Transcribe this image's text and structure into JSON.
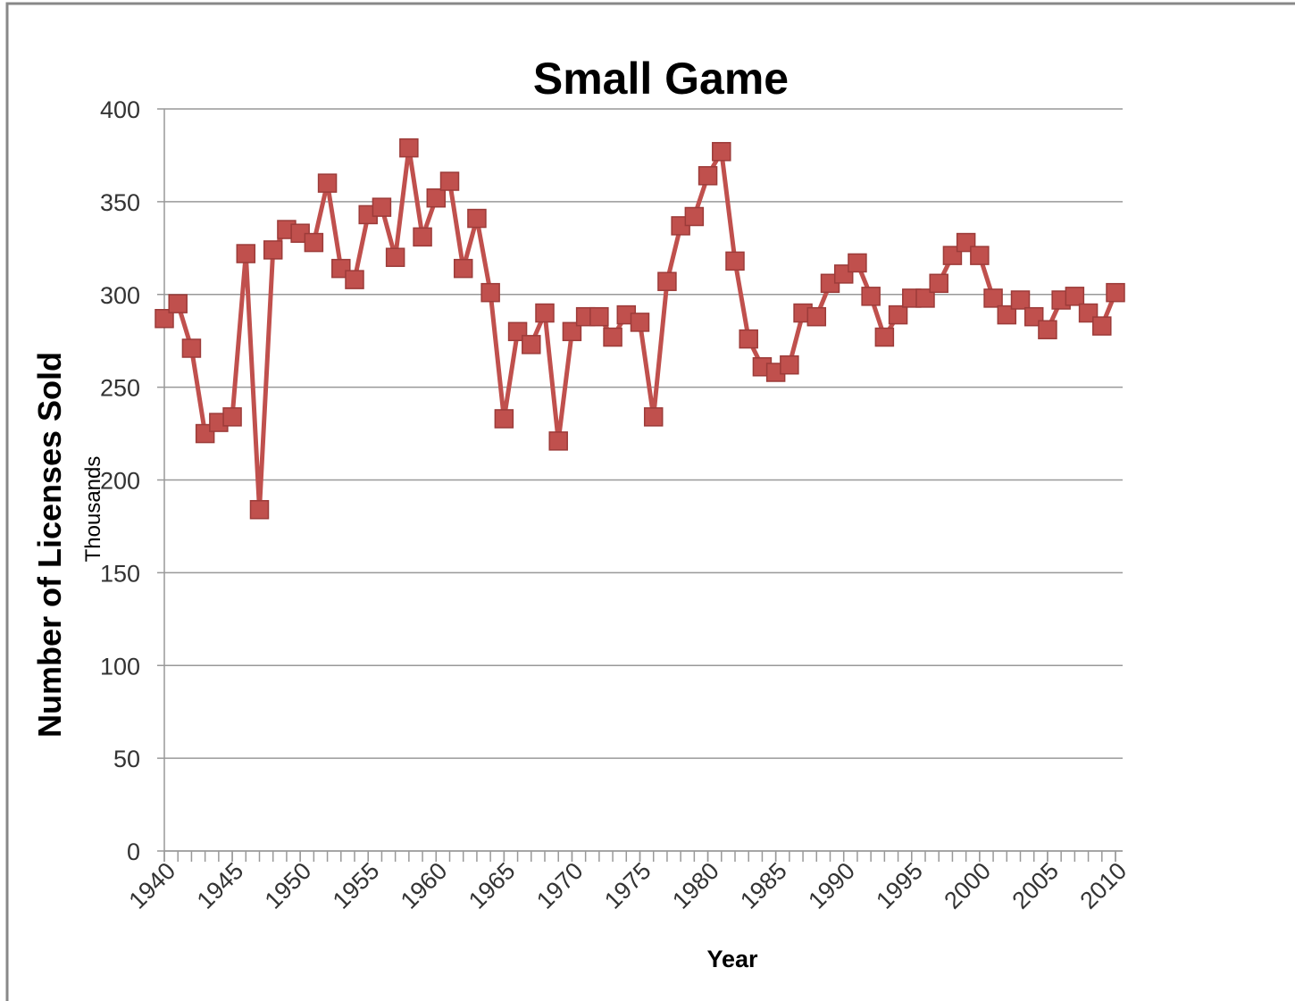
{
  "chart_data": {
    "type": "line",
    "title": "Small Game",
    "y_label": "Number of Licenses Sold",
    "y_unit": "Thousands",
    "x_label": "Year",
    "color": "#c0504d",
    "x": [
      1940,
      1941,
      1942,
      1943,
      1944,
      1945,
      1946,
      1947,
      1948,
      1949,
      1950,
      1951,
      1952,
      1953,
      1954,
      1955,
      1956,
      1957,
      1958,
      1959,
      1960,
      1961,
      1962,
      1963,
      1964,
      1965,
      1966,
      1967,
      1968,
      1969,
      1970,
      1971,
      1972,
      1973,
      1974,
      1975,
      1976,
      1977,
      1978,
      1979,
      1980,
      1981,
      1982,
      1983,
      1984,
      1985,
      1986,
      1987,
      1988,
      1989,
      1990,
      1991,
      1992,
      1993,
      1994,
      1995,
      1996,
      1997,
      1998,
      1999,
      2000,
      2001,
      2002,
      2003,
      2004,
      2005,
      2006,
      2007,
      2008,
      2009,
      2010
    ],
    "values": [
      287,
      295,
      271,
      225,
      231,
      234,
      322,
      184,
      324,
      335,
      333,
      328,
      360,
      314,
      308,
      343,
      347,
      320,
      379,
      331,
      352,
      361,
      314,
      341,
      301,
      233,
      280,
      273,
      290,
      221,
      280,
      288,
      288,
      277,
      289,
      285,
      234,
      307,
      337,
      342,
      364,
      377,
      318,
      276,
      261,
      258,
      262,
      290,
      288,
      306,
      311,
      317,
      299,
      277,
      289,
      298,
      298,
      306,
      321,
      328,
      321,
      298,
      289,
      297,
      288,
      281,
      297,
      299,
      290,
      283,
      301
    ],
    "xlim": [
      1940,
      2010
    ],
    "xticks": [
      1940,
      1945,
      1950,
      1955,
      1960,
      1965,
      1970,
      1975,
      1980,
      1985,
      1990,
      1995,
      2000,
      2005,
      2010
    ],
    "ylim": [
      0,
      400
    ],
    "yticks": [
      0,
      50,
      100,
      150,
      200,
      250,
      300,
      350,
      400
    ],
    "grid": true
  }
}
